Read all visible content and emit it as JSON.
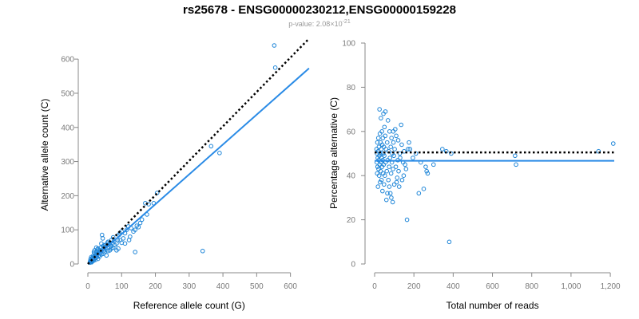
{
  "header": {
    "title": "rs25678 - ENSG00000230212,ENSG00000159228",
    "pvalue_prefix": "p-value: 2.08×10",
    "pvalue_exponent": "-21"
  },
  "colors": {
    "points": "#1f86d8",
    "fit": "#2a8be6",
    "reference": "#000000"
  },
  "chart_data": [
    {
      "type": "scatter",
      "id": "left",
      "xlabel": "Reference allele count (G)",
      "ylabel": "Alternative allele count (C)",
      "xlim": [
        0,
        660
      ],
      "ylim": [
        0,
        640
      ],
      "xticks": [
        0,
        100,
        200,
        300,
        400,
        500,
        600
      ],
      "yticks": [
        0,
        100,
        200,
        300,
        400,
        500,
        600
      ],
      "xtick_labels": [
        "0",
        "100",
        "200",
        "300",
        "400",
        "500",
        "600"
      ],
      "ytick_labels": [
        "0",
        "100",
        "200",
        "300",
        "400",
        "500",
        "600"
      ],
      "fit_line": {
        "x": [
          0,
          655
        ],
        "y": [
          0,
          573
        ]
      },
      "reference_line": {
        "x": [
          0,
          655
        ],
        "y": [
          0,
          660
        ]
      },
      "points": [
        [
          552,
          640
        ],
        [
          555,
          575
        ],
        [
          365,
          345
        ],
        [
          390,
          325
        ],
        [
          195,
          178
        ],
        [
          205,
          208
        ],
        [
          170,
          178
        ],
        [
          180,
          175
        ],
        [
          175,
          145
        ],
        [
          160,
          130
        ],
        [
          155,
          120
        ],
        [
          150,
          108
        ],
        [
          145,
          112
        ],
        [
          140,
          100
        ],
        [
          135,
          95
        ],
        [
          128,
          105
        ],
        [
          122,
          70
        ],
        [
          125,
          80
        ],
        [
          120,
          110
        ],
        [
          110,
          60
        ],
        [
          105,
          75
        ],
        [
          100,
          62
        ],
        [
          95,
          90
        ],
        [
          92,
          85
        ],
        [
          88,
          70
        ],
        [
          85,
          60
        ],
        [
          80,
          55
        ],
        [
          78,
          68
        ],
        [
          75,
          48
        ],
        [
          72,
          62
        ],
        [
          70,
          45
        ],
        [
          68,
          52
        ],
        [
          65,
          40
        ],
        [
          62,
          58
        ],
        [
          60,
          38
        ],
        [
          58,
          48
        ],
        [
          55,
          42
        ],
        [
          52,
          55
        ],
        [
          50,
          35
        ],
        [
          48,
          40
        ],
        [
          46,
          30
        ],
        [
          45,
          52
        ],
        [
          44,
          75
        ],
        [
          42,
          85
        ],
        [
          40,
          28
        ],
        [
          38,
          48
        ],
        [
          36,
          32
        ],
        [
          35,
          22
        ],
        [
          34,
          38
        ],
        [
          32,
          25
        ],
        [
          30,
          30
        ],
        [
          30,
          15
        ],
        [
          28,
          42
        ],
        [
          27,
          20
        ],
        [
          26,
          28
        ],
        [
          25,
          35
        ],
        [
          24,
          18
        ],
        [
          23,
          25
        ],
        [
          22,
          12
        ],
        [
          21,
          22
        ],
        [
          20,
          30
        ],
        [
          19,
          16
        ],
        [
          18,
          20
        ],
        [
          17,
          10
        ],
        [
          16,
          24
        ],
        [
          15,
          14
        ],
        [
          14,
          8
        ],
        [
          13,
          18
        ],
        [
          12,
          12
        ],
        [
          11,
          5
        ],
        [
          10,
          20
        ],
        [
          10,
          10
        ],
        [
          9,
          6
        ],
        [
          8,
          14
        ],
        [
          7,
          8
        ],
        [
          6,
          4
        ],
        [
          55,
          25
        ],
        [
          60,
          65
        ],
        [
          65,
          58
        ],
        [
          85,
          40
        ],
        [
          90,
          45
        ],
        [
          100,
          95
        ],
        [
          110,
          90
        ],
        [
          115,
          100
        ],
        [
          95,
          70
        ],
        [
          75,
          78
        ],
        [
          70,
          70
        ],
        [
          58,
          62
        ],
        [
          50,
          50
        ],
        [
          48,
          55
        ],
        [
          40,
          60
        ],
        [
          38,
          40
        ],
        [
          30,
          45
        ],
        [
          25,
          48
        ],
        [
          20,
          40
        ],
        [
          18,
          35
        ],
        [
          140,
          35
        ],
        [
          340,
          38
        ]
      ]
    },
    {
      "type": "scatter",
      "id": "right",
      "xlabel": "Total number of reads",
      "ylabel": "Percentage alternative (C)",
      "xlim": [
        0,
        1220
      ],
      "ylim": [
        0,
        100
      ],
      "xticks": [
        0,
        200,
        400,
        600,
        800,
        1000,
        1200
      ],
      "yticks": [
        0,
        20,
        40,
        60,
        80,
        100
      ],
      "xtick_labels": [
        "0",
        "200",
        "400",
        "600",
        "800",
        "1,000",
        "1,200"
      ],
      "ytick_labels": [
        "0",
        "20",
        "40",
        "60",
        "80",
        "100"
      ],
      "fit_line": {
        "x": [
          0,
          1220
        ],
        "y": [
          46.7,
          46.7
        ]
      },
      "reference_line": {
        "x": [
          0,
          1220
        ],
        "y": [
          50.5,
          50.5
        ]
      },
      "points": [
        [
          1215,
          54.5
        ],
        [
          1140,
          51
        ],
        [
          715,
          49
        ],
        [
          720,
          45
        ],
        [
          380,
          10
        ],
        [
          390,
          50
        ],
        [
          365,
          51
        ],
        [
          345,
          52
        ],
        [
          300,
          45
        ],
        [
          270,
          41
        ],
        [
          265,
          42
        ],
        [
          260,
          44
        ],
        [
          250,
          34
        ],
        [
          235,
          46
        ],
        [
          225,
          32
        ],
        [
          210,
          50
        ],
        [
          195,
          48
        ],
        [
          180,
          52
        ],
        [
          170,
          52
        ],
        [
          165,
          20
        ],
        [
          160,
          43
        ],
        [
          155,
          45
        ],
        [
          150,
          51
        ],
        [
          145,
          46
        ],
        [
          140,
          38
        ],
        [
          135,
          63
        ],
        [
          130,
          48
        ],
        [
          128,
          50
        ],
        [
          125,
          35
        ],
        [
          120,
          56
        ],
        [
          118,
          47
        ],
        [
          115,
          39
        ],
        [
          110,
          58
        ],
        [
          108,
          44
        ],
        [
          105,
          61
        ],
        [
          102,
          52
        ],
        [
          100,
          36
        ],
        [
          98,
          49
        ],
        [
          96,
          55
        ],
        [
          94,
          43
        ],
        [
          92,
          28
        ],
        [
          90,
          50
        ],
        [
          88,
          46
        ],
        [
          86,
          57
        ],
        [
          84,
          41
        ],
        [
          82,
          53
        ],
        [
          80,
          32
        ],
        [
          78,
          48
        ],
        [
          76,
          60
        ],
        [
          74,
          44
        ],
        [
          72,
          51
        ],
        [
          70,
          38
        ],
        [
          68,
          65
        ],
        [
          66,
          47
        ],
        [
          64,
          55
        ],
        [
          62,
          42
        ],
        [
          60,
          29
        ],
        [
          58,
          52
        ],
        [
          56,
          46
        ],
        [
          54,
          58
        ],
        [
          52,
          40
        ],
        [
          50,
          62
        ],
        [
          49,
          49
        ],
        [
          48,
          36
        ],
        [
          47,
          53
        ],
        [
          46,
          45
        ],
        [
          45,
          68
        ],
        [
          44,
          50
        ],
        [
          43,
          41
        ],
        [
          42,
          57
        ],
        [
          41,
          47
        ],
        [
          40,
          33
        ],
        [
          39,
          54
        ],
        [
          38,
          44
        ],
        [
          37,
          60
        ],
        [
          36,
          48
        ],
        [
          35,
          38
        ],
        [
          34,
          52
        ],
        [
          33,
          46
        ],
        [
          32,
          66
        ],
        [
          31,
          42
        ],
        [
          30,
          55
        ],
        [
          29,
          50
        ],
        [
          28,
          37
        ],
        [
          27,
          59
        ],
        [
          26,
          45
        ],
        [
          25,
          70
        ],
        [
          24,
          49
        ],
        [
          23,
          40
        ],
        [
          22,
          53
        ],
        [
          21,
          47
        ],
        [
          20,
          43
        ],
        [
          19,
          57
        ],
        [
          18,
          51
        ],
        [
          17,
          35
        ],
        [
          16,
          48
        ],
        [
          15,
          44
        ],
        [
          14,
          55
        ],
        [
          13,
          41
        ],
        [
          12,
          50
        ],
        [
          11,
          46
        ],
        [
          10,
          52
        ],
        [
          55,
          69
        ],
        [
          65,
          32
        ],
        [
          75,
          35
        ],
        [
          85,
          30
        ],
        [
          95,
          60
        ],
        [
          112,
          37
        ],
        [
          122,
          42
        ],
        [
          138,
          54
        ],
        [
          148,
          40
        ],
        [
          175,
          55
        ]
      ]
    }
  ]
}
